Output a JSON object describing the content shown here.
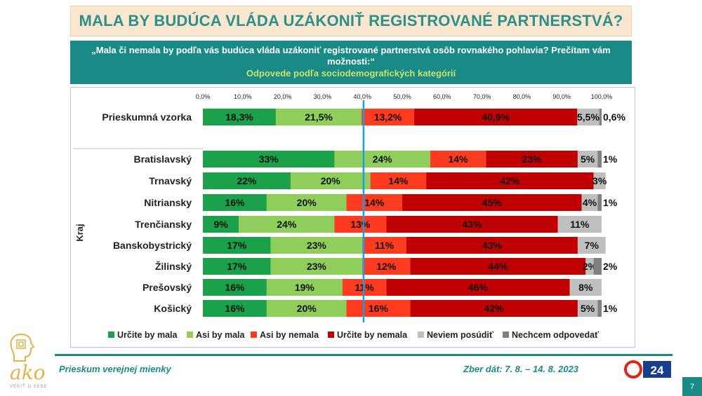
{
  "header": {
    "title": "MALA BY BUDÚCA VLÁDA UZÁKONIŤ REGISTROVANÉ PARTNERSTVÁ?",
    "question": "„Mala či nemala by podľa vás budúca vláda uzákoniť registrované partnerstvá osôb rovnakého pohlavia? Prečítam vám možnosti:“",
    "subtitle": "Odpovede podľa sociodemografických kategórií"
  },
  "footer": {
    "left": "Prieskum verejnej mienky",
    "right": "Zber dát: 7. 8. – 14. 8. 2023",
    "page": "7",
    "logo_text": "ako",
    "logo_tagline": "VERIŤ O SEBE",
    "tv_text": "24"
  },
  "colors": {
    "urcite_mala": "#1aa14a",
    "asi_mala": "#8fce5a",
    "asi_nemala": "#ff3b1f",
    "urcite_nemala": "#c00000",
    "neviem": "#bfbfbf",
    "nechcem": "#7f7f7f",
    "reference_line": "#1f9be0",
    "teal": "#1a8a87"
  },
  "chart_data": {
    "type": "stacked-bar-horizontal",
    "xlim": [
      0,
      100
    ],
    "ticks": [
      "0,0%",
      "10,0%",
      "20,0%",
      "30,0%",
      "40,0%",
      "50,0%",
      "60,0%",
      "70,0%",
      "80,0%",
      "90,0%",
      "100,0%"
    ],
    "reference_line_value": 40.3,
    "group_label": "Kraj",
    "series": [
      {
        "name": "Určite by mala",
        "color": "#1aa14a"
      },
      {
        "name": "Asi by mala",
        "color": "#8fce5a"
      },
      {
        "name": "Asi by nemala",
        "color": "#ff3b1f"
      },
      {
        "name": "Určite by nemala",
        "color": "#c00000"
      },
      {
        "name": "Neviem posúdiť",
        "color": "#bfbfbf"
      },
      {
        "name": "Nechcem odpovedať",
        "color": "#7f7f7f"
      }
    ],
    "rows": [
      {
        "category": "Prieskumná vzorka",
        "values": [
          18.3,
          21.5,
          13.2,
          40.9,
          5.5,
          0.6
        ],
        "labels": [
          "18,3%",
          "21,5%",
          "13,2%",
          "40,9%",
          "5,5%",
          "0,6%"
        ]
      },
      {
        "category": "Bratislavský",
        "values": [
          33,
          24,
          14,
          23,
          5,
          1
        ],
        "labels": [
          "33%",
          "24%",
          "14%",
          "23%",
          "5%",
          "1%"
        ]
      },
      {
        "category": "Trnavský",
        "values": [
          22,
          20,
          14,
          42,
          3,
          0
        ],
        "labels": [
          "22%",
          "20%",
          "14%",
          "42%",
          "3%",
          ""
        ]
      },
      {
        "category": "Nitriansky",
        "values": [
          16,
          20,
          14,
          45,
          4,
          1
        ],
        "labels": [
          "16%",
          "20%",
          "14%",
          "45%",
          "4%",
          "1%"
        ]
      },
      {
        "category": "Trenčiansky",
        "values": [
          9,
          24,
          13,
          43,
          11,
          0
        ],
        "labels": [
          "9%",
          "24%",
          "13%",
          "43%",
          "11%",
          ""
        ]
      },
      {
        "category": "Banskobystrický",
        "values": [
          17,
          23,
          11,
          43,
          7,
          0
        ],
        "labels": [
          "17%",
          "23%",
          "11%",
          "43%",
          "7%",
          ""
        ]
      },
      {
        "category": "Žilinský",
        "values": [
          17,
          23,
          12,
          44,
          2,
          2
        ],
        "labels": [
          "17%",
          "23%",
          "12%",
          "44%",
          "2%",
          "2%"
        ]
      },
      {
        "category": "Prešovský",
        "values": [
          16,
          19,
          11,
          46,
          8,
          0
        ],
        "labels": [
          "16%",
          "19%",
          "11%",
          "46%",
          "8%",
          ""
        ]
      },
      {
        "category": "Košický",
        "values": [
          16,
          20,
          16,
          42,
          5,
          1
        ],
        "labels": [
          "16%",
          "20%",
          "16%",
          "42%",
          "5%",
          "1%"
        ]
      }
    ]
  }
}
